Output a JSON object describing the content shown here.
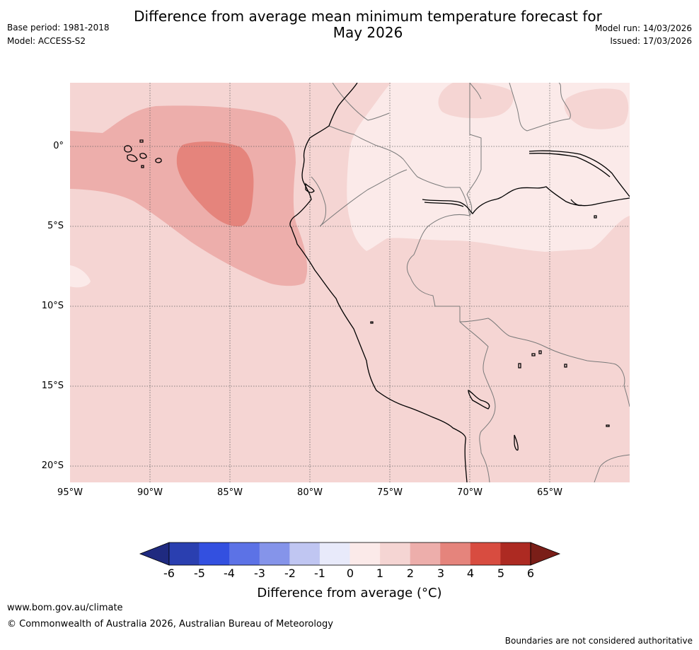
{
  "header": {
    "base_period": "Base period: 1981-2018",
    "model": "Model: ACCESS-S2",
    "model_run": "Model run: 14/03/2026",
    "issued": "Issued: 17/03/2026",
    "title_line1": "Difference from average mean minimum temperature forecast for",
    "title_line2": "May 2026"
  },
  "map": {
    "lat_labels": [
      "0°",
      "5°S",
      "10°S",
      "15°S",
      "20°S"
    ],
    "lon_labels": [
      "95°W",
      "90°W",
      "85°W",
      "80°W",
      "75°W",
      "70°W",
      "65°W"
    ]
  },
  "colorbar": {
    "ticks": [
      "-6",
      "-5",
      "-4",
      "-3",
      "-2",
      "-1",
      "0",
      "1",
      "2",
      "3",
      "4",
      "5",
      "6"
    ],
    "colors": [
      "#1f2a80",
      "#2a3fb0",
      "#3350e0",
      "#5c72e6",
      "#8594ea",
      "#c0c6f2",
      "#e8eafa",
      "#fbeae9",
      "#f5d5d3",
      "#edaeab",
      "#e5847c",
      "#d84c40",
      "#ad2a22",
      "#7a1e18"
    ],
    "label": "Difference from average (°C)"
  },
  "footer": {
    "url": "www.bom.gov.au/climate",
    "copyright": "© Commonwealth of Australia 2026, Australian Bureau of Meteorology",
    "disclaimer": "Boundaries are not considered authoritative"
  }
}
